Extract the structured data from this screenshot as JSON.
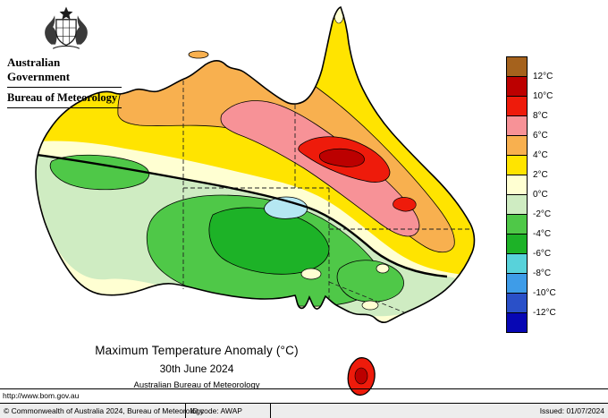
{
  "header": {
    "government": "Australian Government",
    "agency": "Bureau of Meteorology"
  },
  "map": {
    "title": "Maximum Temperature Anomaly (°C)",
    "date": "30th June 2024",
    "source": "Australian Bureau of Meteorology"
  },
  "legend": {
    "labels": [
      "12°C",
      "10°C",
      "8°C",
      "6°C",
      "4°C",
      "2°C",
      "0°C",
      "-2°C",
      "-4°C",
      "-6°C",
      "-8°C",
      "-10°C",
      "-12°C"
    ],
    "cell_colors": [
      "brown",
      "dark_red",
      "red",
      "pink",
      "orange",
      "yellow",
      "cream",
      "pale_green",
      "green",
      "deep_green",
      "cyan",
      "light_blue",
      "blue",
      "dark_blue"
    ]
  },
  "palette": {
    "brown": "#a5621d",
    "dark_red": "#bc0000",
    "red": "#ee1b0b",
    "pink": "#f79297",
    "orange": "#f8b04f",
    "yellow": "#ffe400",
    "cream": "#ffffd2",
    "pale_green": "#cfecc2",
    "green": "#4fc848",
    "deep_green": "#1db227",
    "cyan": "#58d2da",
    "light_blue": "#3e9ce8",
    "blue": "#2a50c8",
    "dark_blue": "#0707b4",
    "pale_cyan": "#b5e7f2",
    "outline": "#000000"
  },
  "footer": {
    "url": "http://www.bom.gov.au",
    "copyright": "© Commonwealth of Australia 2024, Bureau of Meteorology",
    "id_code": "ID code: AWAP",
    "issued": "Issued: 01/07/2024"
  }
}
